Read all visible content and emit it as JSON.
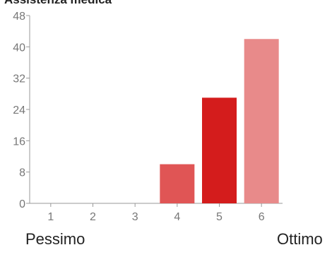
{
  "chart_data": {
    "type": "bar",
    "title": "Assistenza medica",
    "categories": [
      "1",
      "2",
      "3",
      "4",
      "5",
      "6"
    ],
    "values": [
      0,
      0,
      0,
      10,
      27,
      42
    ],
    "bar_colors": [
      "#e05555",
      "#e05555",
      "#e05555",
      "#e05555",
      "#d41c1c",
      "#e88a8a"
    ],
    "yticks": [
      0,
      8,
      16,
      24,
      32,
      40,
      48
    ],
    "ylim": [
      0,
      48
    ],
    "xlabel": "",
    "ylabel": "",
    "grid": false,
    "scale_labels": {
      "low": "Pessimo",
      "high": "Ottimo"
    },
    "colors": {
      "axis": "#999999",
      "tick_text": "#777777",
      "text": "#222222"
    }
  }
}
